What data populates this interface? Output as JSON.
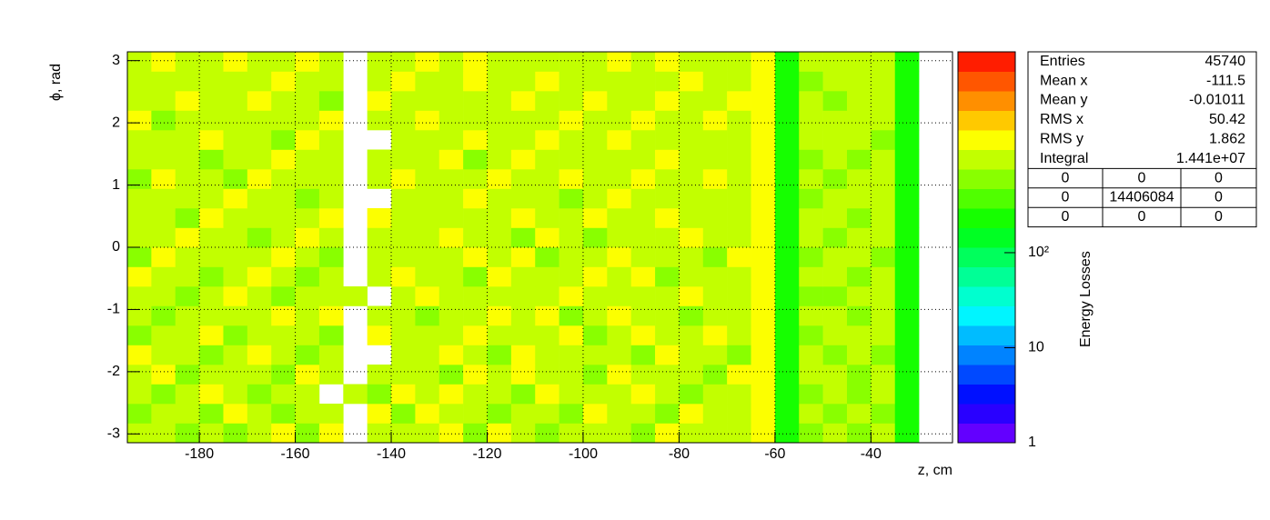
{
  "chart_data": {
    "type": "heatmap",
    "x_label": "z, cm",
    "y_label": "ϕ, rad",
    "z_label": "Energy Losses",
    "xlim": [
      -195,
      -23
    ],
    "ylim": [
      -3.1416,
      3.1416
    ],
    "zlim": [
      1,
      13000
    ],
    "zlog": true,
    "grid": true,
    "xticks": [
      -180,
      -160,
      -140,
      -120,
      -100,
      -80,
      -60,
      -40
    ],
    "yticks": [
      -3,
      -2,
      -1,
      0,
      1,
      2,
      3
    ],
    "zticks": [
      1,
      10,
      {
        "value": 100,
        "label": "10²"
      }
    ],
    "xbins": [
      -195,
      -190,
      -185,
      -180,
      -175,
      -170,
      -165,
      -160,
      -155,
      -150,
      -145,
      -140,
      -135,
      -130,
      -125,
      -120,
      -115,
      -110,
      -105,
      -100,
      -95,
      -90,
      -85,
      -80,
      -75,
      -70,
      -65,
      -60,
      -55,
      -50,
      -45,
      -40,
      -35,
      -30
    ],
    "ybins": [
      -3.1416,
      -2.8274,
      -2.5133,
      -2.1991,
      -1.885,
      -1.5708,
      -1.2566,
      -0.9425,
      -0.6283,
      -0.3142,
      0,
      0.3142,
      0.6283,
      0.9425,
      1.2566,
      1.5708,
      1.885,
      2.1991,
      2.5133,
      2.8274,
      3.1416
    ],
    "z": [
      [
        900,
        1200,
        700,
        1100,
        650,
        980,
        1300,
        560,
        1400,
        null,
        760,
        1050,
        880,
        1250,
        620,
        1500,
        930,
        710,
        1180,
        840,
        1020,
        690,
        1350,
        770,
        1100,
        950,
        1800,
        230,
        680,
        900,
        520,
        1100,
        220
      ],
      [
        640,
        880,
        1150,
        720,
        1300,
        860,
        590,
        1020,
        780,
        null,
        1250,
        690,
        1400,
        820,
        1060,
        740,
        1180,
        900,
        650,
        1320,
        980,
        1120,
        700,
        1450,
        830,
        1010,
        1700,
        270,
        820,
        560,
        1050,
        740,
        260
      ],
      [
        1100,
        720,
        980,
        1350,
        800,
        640,
        1200,
        900,
        null,
        1150,
        700,
        1300,
        940,
        1600,
        780,
        1020,
        660,
        1400,
        870,
        1090,
        760,
        1280,
        920,
        640,
        1150,
        880,
        1850,
        240,
        590,
        980,
        700,
        880,
        230
      ],
      [
        760,
        1300,
        620,
        900,
        1180,
        1040,
        700,
        1450,
        830,
        null,
        980,
        820,
        1150,
        700,
        1350,
        900,
        1250,
        760,
        1030,
        690,
        1420,
        860,
        1080,
        990,
        720,
        1300,
        1750,
        250,
        760,
        1100,
        640,
        930,
        250
      ],
      [
        1250,
        860,
        1050,
        700,
        960,
        1400,
        820,
        680,
        1150,
        null,
        null,
        1100,
        760,
        1220,
        980,
        690,
        1350,
        1050,
        800,
        1180,
        900,
        740,
        1300,
        860,
        1050,
        700,
        1900,
        220,
        1000,
        700,
        860,
        620,
        240
      ],
      [
        700,
        1050,
        880,
        1300,
        640,
        900,
        1150,
        1020,
        700,
        null,
        1300,
        950,
        1080,
        830,
        1450,
        1120,
        780,
        920,
        1260,
        700,
        1100,
        1380,
        780,
        1000,
        1230,
        900,
        1800,
        260,
        640,
        920,
        1200,
        780,
        230
      ],
      [
        980,
        640,
        1200,
        850,
        1100,
        760,
        1400,
        880,
        1250,
        null,
        820,
        1180,
        700,
        1050,
        900,
        1300,
        1000,
        1600,
        720,
        980,
        1250,
        900,
        1150,
        730,
        980,
        1080,
        1700,
        250,
        880,
        1150,
        700,
        950,
        260
      ],
      [
        820,
        1150,
        740,
        1000,
        1320,
        900,
        660,
        1200,
        900,
        1050,
        null,
        760,
        1350,
        980,
        1180,
        760,
        1100,
        880,
        1400,
        1050,
        820,
        1020,
        900,
        1270,
        860,
        1200,
        1850,
        240,
        720,
        600,
        980,
        1000,
        240
      ],
      [
        1300,
        900,
        1020,
        680,
        880,
        1250,
        1050,
        740,
        1100,
        null,
        950,
        1300,
        890,
        1200,
        700,
        1400,
        960,
        1150,
        860,
        1230,
        990,
        1300,
        700,
        960,
        1120,
        800,
        1750,
        230,
        950,
        880,
        640,
        870,
        250
      ],
      [
        690,
        1220,
        880,
        1150,
        760,
        1000,
        1350,
        940,
        700,
        null,
        1180,
        870,
        1050,
        760,
        1600,
        880,
        1250,
        700,
        1060,
        900,
        1380,
        760,
        1180,
        1050,
        700,
        1350,
        1800,
        260,
        600,
        1050,
        880,
        700,
        230
      ],
      [
        1050,
        760,
        1300,
        900,
        1180,
        680,
        920,
        1250,
        1000,
        null,
        800,
        1100,
        980,
        1400,
        860,
        1120,
        700,
        1300,
        980,
        740,
        1060,
        1200,
        880,
        1330,
        950,
        900,
        1900,
        250,
        870,
        700,
        1120,
        940,
        240
      ],
      [
        880,
        1100,
        680,
        1250,
        900,
        1150,
        780,
        1000,
        1350,
        null,
        1250,
        760,
        1200,
        880,
        1050,
        970,
        1500,
        820,
        1150,
        1300,
        900,
        1020,
        1260,
        760,
        1100,
        1180,
        1700,
        240,
        1000,
        860,
        690,
        1050,
        260
      ],
      [
        1200,
        850,
        1050,
        760,
        1300,
        950,
        1100,
        700,
        880,
        null,
        null,
        1050,
        830,
        1150,
        1300,
        760,
        1020,
        1200,
        700,
        980,
        1250,
        860,
        980,
        1150,
        870,
        1020,
        1850,
        230,
        740,
        1120,
        950,
        760,
        250
      ],
      [
        740,
        1300,
        900,
        1100,
        690,
        1250,
        880,
        1180,
        1020,
        null,
        960,
        1300,
        1100,
        760,
        980,
        1400,
        880,
        1060,
        1300,
        850,
        1100,
        1350,
        760,
        1000,
        1280,
        760,
        1800,
        250,
        920,
        680,
        1080,
        900,
        230
      ],
      [
        1020,
        880,
        1200,
        700,
        1050,
        860,
        1300,
        960,
        760,
        null,
        1150,
        880,
        1000,
        1250,
        700,
        1050,
        1300,
        900,
        1100,
        1200,
        780,
        1020,
        1300,
        870,
        950,
        1150,
        1750,
        260,
        680,
        990,
        750,
        1100,
        240
      ],
      [
        860,
        1150,
        760,
        1280,
        920,
        1100,
        700,
        1250,
        1080,
        null,
        null,
        1200,
        760,
        1050,
        1350,
        880,
        960,
        1420,
        760,
        1050,
        1300,
        900,
        1080,
        1200,
        760,
        1000,
        1900,
        240,
        1050,
        820,
        1200,
        680,
        260
      ],
      [
        1300,
        700,
        1050,
        900,
        1200,
        780,
        1150,
        880,
        1300,
        null,
        980,
        760,
        1280,
        920,
        1100,
        1200,
        780,
        1050,
        1250,
        900,
        1080,
        1250,
        760,
        1050,
        1300,
        880,
        1800,
        230,
        780,
        1100,
        880,
        920,
        250
      ],
      [
        760,
        1020,
        1300,
        1060,
        780,
        1350,
        900,
        1100,
        700,
        null,
        1250,
        1050,
        900,
        1180,
        850,
        1020,
        1300,
        880,
        960,
        1350,
        760,
        1100,
        1320,
        920,
        1020,
        1250,
        1700,
        250,
        950,
        700,
        1020,
        800,
        230
      ],
      [
        1100,
        900,
        820,
        1200,
        1000,
        900,
        1250,
        760,
        1180,
        null,
        820,
        1300,
        1100,
        780,
        1250,
        900,
        1100,
        1300,
        820,
        1060,
        1200,
        880,
        1000,
        1300,
        880,
        1050,
        1850,
        260,
        700,
        1200,
        860,
        1000,
        240
      ],
      [
        950,
        1250,
        1050,
        800,
        1300,
        1050,
        780,
        1300,
        950,
        null,
        1100,
        900,
        1250,
        1050,
        1400,
        1150,
        900,
        1200,
        1100,
        900,
        1300,
        1050,
        1250,
        1000,
        1200,
        900,
        1900,
        240,
        1050,
        900,
        1150,
        850,
        250
      ]
    ],
    "stats": [
      [
        "Entries",
        "45740"
      ],
      [
        "Mean x",
        "-111.5"
      ],
      [
        "Mean y",
        "-0.01011"
      ],
      [
        "RMS x",
        "50.42"
      ],
      [
        "RMS y",
        "1.862"
      ],
      [
        "Integral",
        "1.441e+07"
      ]
    ],
    "overflow": [
      [
        "0",
        "0",
        "0"
      ],
      [
        "0",
        "14406084",
        "0"
      ],
      [
        "0",
        "0",
        "0"
      ]
    ]
  }
}
